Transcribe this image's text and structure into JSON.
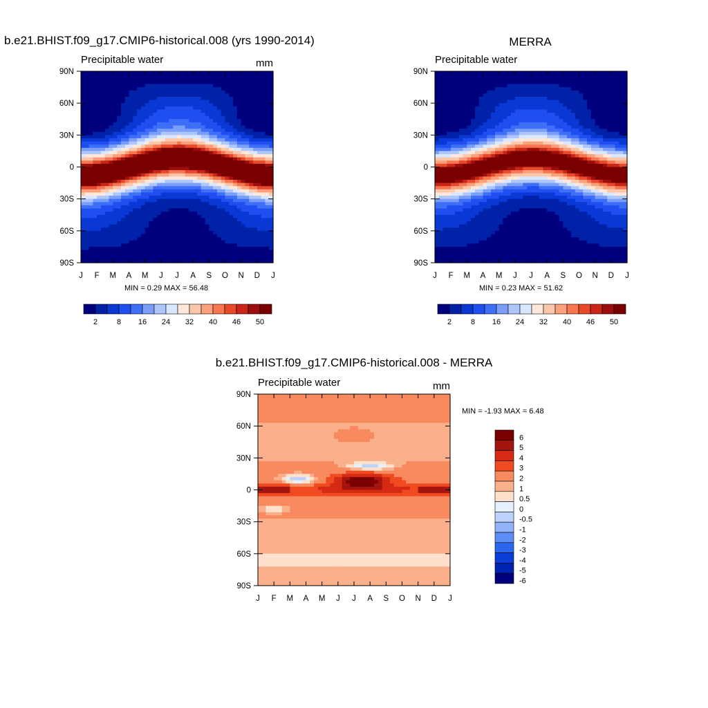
{
  "chart_data": [
    {
      "type": "heatmap",
      "title": "b.e21.BHIST.f09_g17.CMIP6-historical.008 (yrs 1990-2014)",
      "left_label": "Precipitable water",
      "right_label": "mm",
      "x_ticks": [
        "J",
        "F",
        "M",
        "A",
        "M",
        "J",
        "J",
        "A",
        "S",
        "O",
        "N",
        "D",
        "J"
      ],
      "y_ticks": [
        "90N",
        "60N",
        "30N",
        "0",
        "30S",
        "60S",
        "90S"
      ],
      "stats_text": "MIN =   0.29 MAX =   56.48",
      "min": 0.29,
      "max": 56.48,
      "colorbar_labels": [
        "2",
        "8",
        "16",
        "24",
        "32",
        "40",
        "46",
        "50"
      ]
    },
    {
      "type": "heatmap",
      "title": "MERRA",
      "left_label": "Precipitable water",
      "right_label": "",
      "x_ticks": [
        "J",
        "F",
        "M",
        "A",
        "M",
        "J",
        "J",
        "A",
        "S",
        "O",
        "N",
        "D",
        "J"
      ],
      "y_ticks": [
        "90N",
        "60N",
        "30N",
        "0",
        "30S",
        "60S",
        "90S"
      ],
      "stats_text": "MIN =   0.23 MAX =   51.62",
      "min": 0.23,
      "max": 51.62,
      "colorbar_labels": [
        "2",
        "8",
        "16",
        "24",
        "32",
        "40",
        "46",
        "50"
      ]
    },
    {
      "type": "heatmap",
      "title": "b.e21.BHIST.f09_g17.CMIP6-historical.008 - MERRA",
      "left_label": "Precipitable water",
      "right_label": "mm",
      "x_ticks": [
        "J",
        "F",
        "M",
        "A",
        "M",
        "J",
        "J",
        "A",
        "S",
        "O",
        "N",
        "D",
        "J"
      ],
      "y_ticks": [
        "90N",
        "60N",
        "30N",
        "0",
        "30S",
        "60S",
        "90S"
      ],
      "stats_text": "MIN =  -1.93 MAX =   6.48",
      "min": -1.93,
      "max": 6.48,
      "colorbar_labels": [
        "6",
        "5",
        "4",
        "3",
        "2",
        "1",
        "0.5",
        "0",
        "-0.5",
        "-1",
        "-2",
        "-3",
        "-4",
        "-5",
        "-6"
      ]
    }
  ],
  "colors": {
    "seq_palette": [
      "#00007f",
      "#0022a8",
      "#0a38d4",
      "#1f4ff0",
      "#3f6ef7",
      "#7b9ff9",
      "#aec6fb",
      "#d9e8fe",
      "#ffe8d9",
      "#fdc7ab",
      "#fba07c",
      "#f6774f",
      "#e9492b",
      "#c9261a",
      "#9c0d0d",
      "#7a0000"
    ],
    "diff_palette": [
      "#7a0000",
      "#a5150f",
      "#d52b13",
      "#f04a20",
      "#f88a5f",
      "#fbb08c",
      "#fde1cc",
      "#e6f0ff",
      "#bcd2fb",
      "#92b3f9",
      "#5d8df6",
      "#2d66ee",
      "#0b3ed6",
      "#0024b0",
      "#00007f"
    ]
  }
}
